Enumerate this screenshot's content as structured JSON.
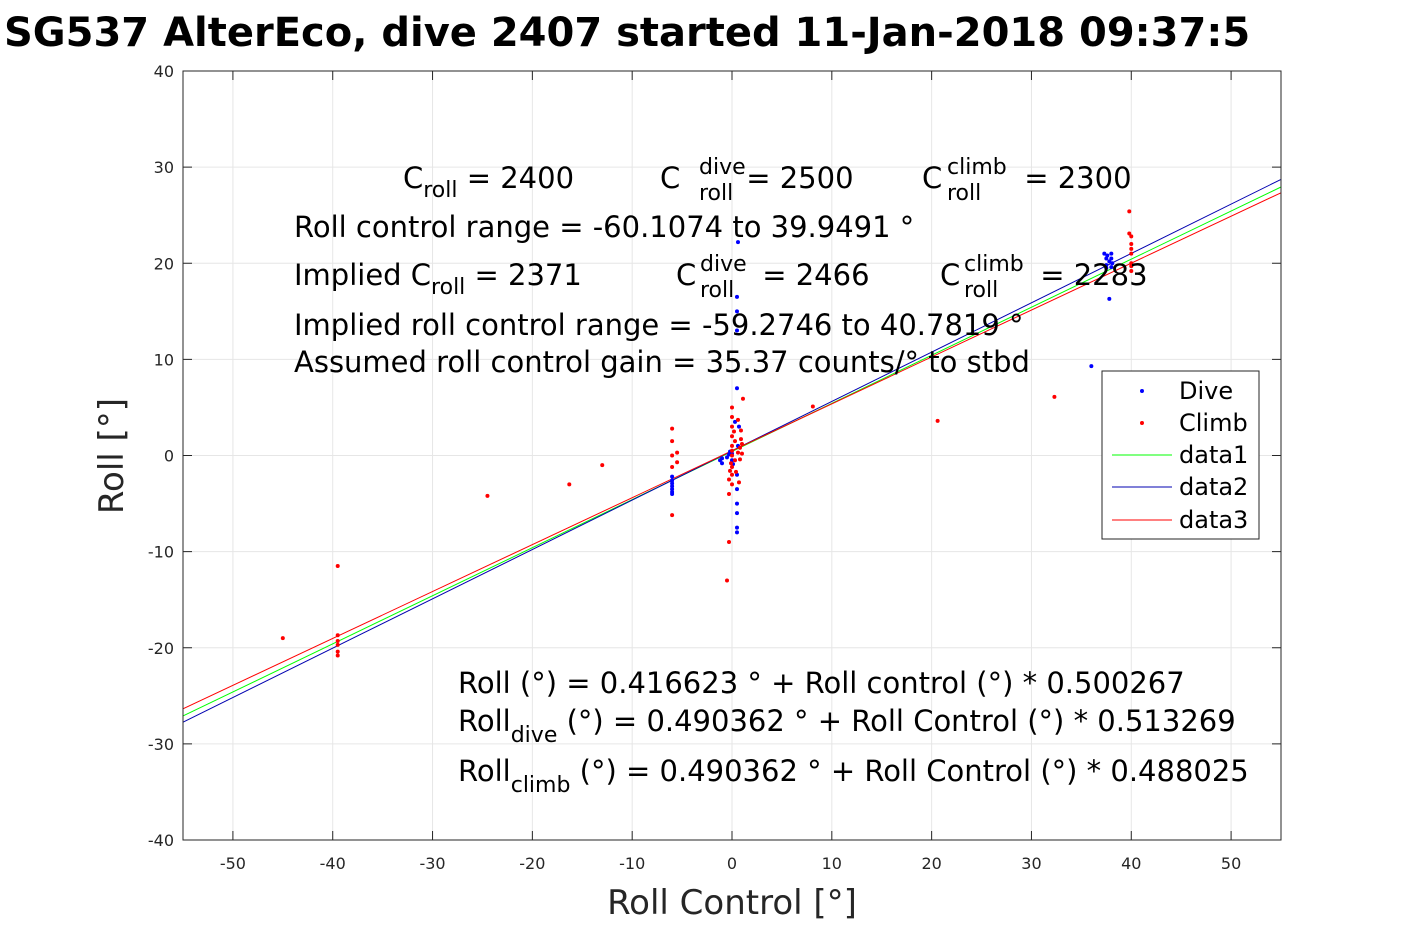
{
  "title": "SG537 AlterEco, dive 2407 started 11-Jan-2018 09:37:5",
  "chart_data": {
    "type": "scatter",
    "xlabel": "Roll Control [°]",
    "ylabel": "Roll [°]",
    "xlim": [
      -55,
      55
    ],
    "ylim": [
      -40,
      40
    ],
    "xticks": [
      -50,
      -40,
      -30,
      -20,
      -10,
      0,
      10,
      20,
      30,
      40,
      50
    ],
    "yticks": [
      -40,
      -30,
      -20,
      -10,
      0,
      10,
      20,
      30,
      40
    ],
    "grid": true,
    "legend_position": "right",
    "series": [
      {
        "name": "Dive",
        "kind": "points",
        "color": "#0000ff",
        "points": [
          [
            -6,
            -2.2
          ],
          [
            -6,
            -2.6
          ],
          [
            -6,
            -2.9
          ],
          [
            -6,
            -3.2
          ],
          [
            -6,
            -3.5
          ],
          [
            -6,
            -3.8
          ],
          [
            -6,
            -4
          ],
          [
            -1.2,
            -0.5
          ],
          [
            -1,
            -0.8
          ],
          [
            -1,
            -0.3
          ],
          [
            -0.5,
            -0.2
          ],
          [
            -0.3,
            0.1
          ],
          [
            -0.2,
            0.4
          ],
          [
            0,
            -0.5
          ],
          [
            0,
            0.2
          ],
          [
            0.1,
            -0.9
          ],
          [
            0.3,
            3.5
          ],
          [
            0.5,
            -2
          ],
          [
            0.5,
            -3.5
          ],
          [
            0.5,
            -5
          ],
          [
            0.5,
            -6
          ],
          [
            0.5,
            -7.5
          ],
          [
            0.5,
            -8
          ],
          [
            0.5,
            7
          ],
          [
            0.5,
            13
          ],
          [
            0.5,
            15
          ],
          [
            0.5,
            16.5
          ],
          [
            0.6,
            22.2
          ],
          [
            0.7,
            3
          ],
          [
            0.6,
            1
          ],
          [
            36,
            9.3
          ],
          [
            37.3,
            21
          ],
          [
            37.5,
            20.5
          ],
          [
            37.5,
            19.8
          ],
          [
            37.5,
            19.5
          ],
          [
            37.6,
            20.8
          ],
          [
            37.8,
            20.2
          ],
          [
            37.8,
            16.3
          ],
          [
            38,
            20.5
          ],
          [
            38,
            21
          ],
          [
            38,
            19.6
          ],
          [
            38.1,
            20
          ]
        ]
      },
      {
        "name": "Climb",
        "kind": "points",
        "color": "#ff0000",
        "points": [
          [
            -45,
            -19
          ],
          [
            -39.5,
            -11.5
          ],
          [
            -39.5,
            -18.7
          ],
          [
            -39.5,
            -19.3
          ],
          [
            -39.5,
            -19.7
          ],
          [
            -39.5,
            -20.4
          ],
          [
            -39.5,
            -20.8
          ],
          [
            -24.5,
            -4.2
          ],
          [
            -16.3,
            -3
          ],
          [
            -13,
            -1
          ],
          [
            -6,
            2.8
          ],
          [
            -6,
            1.5
          ],
          [
            -6,
            0
          ],
          [
            -6,
            -1.2
          ],
          [
            -6,
            -6.2
          ],
          [
            -5.5,
            0.3
          ],
          [
            -5.5,
            -0.7
          ],
          [
            -0.5,
            -13
          ],
          [
            -0.3,
            -9
          ],
          [
            -0.3,
            -4
          ],
          [
            -0.3,
            -2.5
          ],
          [
            -0.2,
            -1.6
          ],
          [
            -0.1,
            -0.8
          ],
          [
            0,
            5
          ],
          [
            0,
            4
          ],
          [
            0,
            3
          ],
          [
            0,
            2
          ],
          [
            0,
            1
          ],
          [
            0,
            0.5
          ],
          [
            0,
            0
          ],
          [
            0,
            -1.2
          ],
          [
            0,
            -2
          ],
          [
            0,
            -3
          ],
          [
            0.2,
            2.5
          ],
          [
            0.3,
            1.5
          ],
          [
            0.3,
            -0.5
          ],
          [
            0.4,
            -1.7
          ],
          [
            0.6,
            3.7
          ],
          [
            0.6,
            0.3
          ],
          [
            0.7,
            -2.8
          ],
          [
            0.8,
            -0.4
          ],
          [
            0.8,
            0.8
          ],
          [
            0.9,
            1.7
          ],
          [
            0.9,
            2.6
          ],
          [
            1,
            1.2
          ],
          [
            1,
            0.2
          ],
          [
            1.1,
            5.9
          ],
          [
            8.1,
            5.1
          ],
          [
            20.6,
            3.6
          ],
          [
            32.3,
            6.1
          ],
          [
            39.8,
            25.4
          ],
          [
            39.8,
            23.1
          ],
          [
            40,
            22.8
          ],
          [
            40,
            22
          ],
          [
            40,
            21.5
          ],
          [
            40,
            21
          ],
          [
            40,
            20
          ],
          [
            40,
            19.7
          ],
          [
            40,
            19.2
          ]
        ]
      },
      {
        "name": "data1",
        "kind": "line",
        "color": "#00ff00",
        "intercept": 0.416623,
        "slope": 0.500267
      },
      {
        "name": "data2",
        "kind": "line",
        "color": "#0000b0",
        "intercept": 0.490362,
        "slope": 0.513269
      },
      {
        "name": "data3",
        "kind": "line",
        "color": "#ff0000",
        "intercept": 0.490362,
        "slope": 0.488025
      }
    ]
  },
  "annotations": {
    "c_roll": "C",
    "c_roll_sub": "roll",
    "c_roll_val": " = 2400",
    "c_dive": "C",
    "c_dive_sup": "dive",
    "c_dive_sub": "roll",
    "c_dive_val": " = 2500",
    "c_climb": "C",
    "c_climb_sup": "climb",
    "c_climb_sub": "roll",
    "c_climb_val": " = 2300",
    "range_line": "Roll control range = -60.1074 to 39.9491 °",
    "implied_c": "Implied C",
    "implied_c_sub": "roll",
    "implied_c_val": " = 2371",
    "implied_dive": "C",
    "implied_dive_sup": "dive",
    "implied_dive_sub": "roll",
    "implied_dive_val": " = 2466",
    "implied_climb": "C",
    "implied_climb_sup": "climb",
    "implied_climb_sub": "roll",
    "implied_climb_val": " = 2283",
    "implied_range": "Implied roll control range = -59.2746 to 40.7819 °",
    "gain": "Assumed roll control gain = 35.37 counts/° to stbd",
    "fit_all": "Roll (°) = 0.416623 ° + Roll control (°) * 0.500267",
    "fit_dive_a": "Roll",
    "fit_dive_sub": "dive",
    "fit_dive_b": " (°) = 0.490362 ° + Roll Control (°) * 0.513269",
    "fit_climb_a": "Roll",
    "fit_climb_sub": "climb",
    "fit_climb_b": " (°) = 0.490362 ° + Roll Control (°) * 0.488025"
  }
}
